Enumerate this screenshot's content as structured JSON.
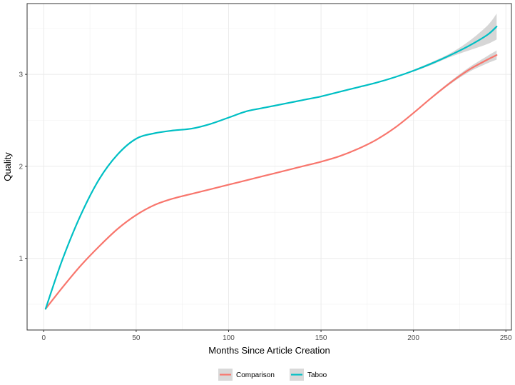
{
  "chart_data": {
    "type": "line",
    "xlabel": "Months Since Article Creation",
    "ylabel": "Quality",
    "xlim": [
      -9,
      253
    ],
    "ylim": [
      0.22,
      3.77
    ],
    "x_ticks": [
      0,
      50,
      100,
      150,
      200,
      250
    ],
    "x_tick_labels": [
      "0",
      "50",
      "100",
      "150",
      "200",
      "250"
    ],
    "y_ticks": [
      1,
      2,
      3
    ],
    "y_tick_labels": [
      "1",
      "2",
      "3"
    ],
    "grid": true,
    "legend_position": "bottom",
    "series": [
      {
        "name": "Comparison",
        "color": "#F8766D",
        "x": [
          1,
          10,
          20,
          30,
          40,
          50,
          60,
          70,
          80,
          90,
          100,
          110,
          120,
          130,
          140,
          150,
          160,
          170,
          180,
          190,
          200,
          210,
          220,
          230,
          240,
          245
        ],
        "y": [
          0.45,
          0.68,
          0.92,
          1.13,
          1.32,
          1.47,
          1.58,
          1.65,
          1.7,
          1.75,
          1.8,
          1.85,
          1.9,
          1.95,
          2.0,
          2.05,
          2.11,
          2.19,
          2.29,
          2.42,
          2.58,
          2.75,
          2.91,
          3.05,
          3.16,
          3.21
        ],
        "band": [
          0,
          0,
          0,
          0,
          0,
          0,
          0,
          0,
          0,
          0,
          0,
          0,
          0,
          0,
          0,
          0,
          0,
          0,
          0,
          0,
          0,
          0.01,
          0.015,
          0.025,
          0.04,
          0.05
        ]
      },
      {
        "name": "Taboo",
        "color": "#00BFC4",
        "x": [
          1,
          10,
          20,
          30,
          40,
          50,
          60,
          70,
          80,
          90,
          100,
          110,
          120,
          130,
          140,
          150,
          160,
          170,
          180,
          190,
          200,
          210,
          220,
          230,
          240,
          245
        ],
        "y": [
          0.45,
          0.98,
          1.47,
          1.86,
          2.13,
          2.3,
          2.36,
          2.39,
          2.41,
          2.46,
          2.53,
          2.6,
          2.64,
          2.68,
          2.72,
          2.76,
          2.81,
          2.86,
          2.91,
          2.97,
          3.04,
          3.12,
          3.21,
          3.31,
          3.43,
          3.52
        ],
        "band": [
          0,
          0,
          0,
          0,
          0,
          0,
          0,
          0,
          0,
          0,
          0,
          0,
          0,
          0,
          0,
          0,
          0,
          0,
          0,
          0,
          0.01,
          0.015,
          0.02,
          0.05,
          0.1,
          0.14
        ]
      }
    ]
  }
}
